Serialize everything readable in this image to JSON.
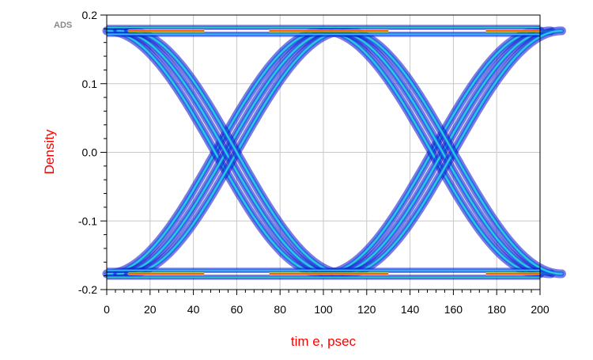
{
  "chart_data": {
    "type": "scatter",
    "watermark": "ADS",
    "title": "",
    "xlabel": "tim e, psec",
    "ylabel": "Density",
    "xlim": [
      0,
      200
    ],
    "ylim": [
      -0.2,
      0.2
    ],
    "x_ticks": [
      0,
      20,
      40,
      60,
      80,
      100,
      120,
      140,
      160,
      180,
      200
    ],
    "y_ticks": [
      -0.2,
      -0.1,
      0.0,
      0.1,
      0.2
    ],
    "y_tick_labels": [
      "-0.2",
      "-0.1",
      "0.0",
      "0.1",
      "0.2"
    ],
    "grid": true,
    "legend": "none",
    "eye_diagram": {
      "unit_interval_ps": 100,
      "crossing_times_ps": [
        55,
        155
      ],
      "high_level": 0.177,
      "low_level": -0.177,
      "rails": [
        0.172,
        0.182
      ],
      "crossing_spread_ps": [
        -5,
        0,
        5
      ]
    },
    "density_colors": [
      "#0a14c8",
      "#1e50f0",
      "#14b4f0",
      "#3cdcc8",
      "#c8e628",
      "#ff8c00",
      "#ff1e00"
    ],
    "label_color": "#ff0000",
    "axis_color": "#000000",
    "grid_color": "#c8c8c8"
  }
}
